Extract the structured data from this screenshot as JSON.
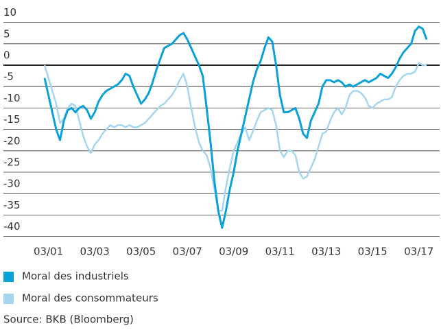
{
  "chart_data": {
    "type": "line",
    "x": [
      "01/01",
      "03/01",
      "05/01",
      "07/01",
      "09/01",
      "11/01",
      "01/02",
      "03/02",
      "05/02",
      "07/02",
      "09/02",
      "11/02",
      "01/03",
      "03/03",
      "05/03",
      "07/03",
      "09/03",
      "11/03",
      "01/04",
      "03/04",
      "05/04",
      "07/04",
      "09/04",
      "11/04",
      "01/05",
      "03/05",
      "05/05",
      "07/05",
      "09/05",
      "11/05",
      "01/06",
      "03/06",
      "05/06",
      "07/06",
      "09/06",
      "11/06",
      "01/07",
      "03/07",
      "05/07",
      "07/07",
      "09/07",
      "11/07",
      "01/08",
      "03/08",
      "05/08",
      "07/08",
      "09/08",
      "11/08",
      "01/09",
      "03/09",
      "05/09",
      "07/09",
      "09/09",
      "11/09",
      "01/10",
      "03/10",
      "05/10",
      "07/10",
      "09/10",
      "11/10",
      "01/11",
      "03/11",
      "05/11",
      "07/11",
      "09/11",
      "11/11",
      "01/12",
      "03/12",
      "05/12",
      "07/12",
      "09/12",
      "11/12",
      "01/13",
      "03/13",
      "05/13",
      "07/13",
      "09/13",
      "11/13",
      "01/14",
      "03/14",
      "05/14",
      "07/14",
      "09/14",
      "11/14",
      "01/15",
      "03/15",
      "05/15",
      "07/15",
      "09/15",
      "11/15",
      "01/16",
      "03/16",
      "05/16",
      "07/16",
      "09/16",
      "11/16",
      "01/17",
      "03/17",
      "05/17",
      "07/17"
    ],
    "series": [
      {
        "name": "Moral des industriels",
        "color": "#0aa0d8",
        "values": [
          -3,
          -7,
          -11,
          -15,
          -17.5,
          -13,
          -10.5,
          -10,
          -11,
          -10,
          -9.5,
          -10.5,
          -12.5,
          -11,
          -8.5,
          -7,
          -6,
          -5.5,
          -5,
          -4.5,
          -3.5,
          -2,
          -2.5,
          -5,
          -7,
          -9,
          -8,
          -6.5,
          -4,
          -1,
          1.5,
          4,
          4.5,
          5,
          6,
          7,
          7.5,
          6,
          4,
          2,
          0,
          -2.5,
          -10,
          -18,
          -27,
          -34,
          -38,
          -34,
          -29,
          -25,
          -20,
          -16,
          -12,
          -8,
          -4,
          -1,
          1,
          4,
          6.5,
          5.5,
          0,
          -7,
          -11,
          -11,
          -10.5,
          -10,
          -12.5,
          -16,
          -17,
          -13,
          -11,
          -9,
          -5,
          -3.5,
          -3.5,
          -4,
          -3.5,
          -4,
          -5,
          -4.5,
          -5,
          -4.5,
          -4,
          -3.5,
          -4,
          -3.5,
          -3,
          -2,
          -2.5,
          -3,
          -2,
          -0.5,
          1.5,
          3,
          4,
          5,
          8,
          9,
          8.5,
          6
        ]
      },
      {
        "name": "Moral des consommateurs",
        "color": "#a5d5ef",
        "values": [
          0,
          -3,
          -6,
          -9,
          -13.5,
          -12.5,
          -10,
          -9,
          -9.5,
          -13,
          -16.5,
          -19,
          -20.5,
          -18.5,
          -17.5,
          -16,
          -15,
          -14,
          -14.5,
          -14,
          -14,
          -14.5,
          -14,
          -14.5,
          -14.5,
          -14,
          -13.5,
          -12.5,
          -11.5,
          -10.5,
          -9.5,
          -9,
          -8,
          -7,
          -5.5,
          -3.5,
          -2,
          -5,
          -10,
          -14.5,
          -18,
          -20,
          -21,
          -24,
          -29,
          -34,
          -34,
          -28.5,
          -24,
          -20,
          -18,
          -16,
          -14.5,
          -17.5,
          -15.5,
          -13,
          -11,
          -10.5,
          -10,
          -10.5,
          -14,
          -20,
          -21.5,
          -20,
          -20,
          -21,
          -25,
          -26.5,
          -26,
          -24,
          -22,
          -19,
          -16,
          -15.5,
          -13,
          -11,
          -10,
          -11.5,
          -10,
          -7,
          -6,
          -6,
          -6.5,
          -7.5,
          -9.5,
          -10,
          -9,
          -8.5,
          -8,
          -8,
          -7.5,
          -5,
          -3.5,
          -2.5,
          -2,
          -2,
          -1.5,
          0.5,
          0,
          0
        ]
      }
    ],
    "xticks": [
      "03/01",
      "03/03",
      "03/05",
      "03/07",
      "03/09",
      "03/11",
      "03/13",
      "03/15",
      "03/17"
    ],
    "ylim": [
      -40,
      10
    ],
    "yticks": [
      10,
      5,
      0,
      -5,
      -10,
      -15,
      -20,
      -25,
      -30,
      -35,
      -40
    ],
    "grid": true,
    "source": "Source: BKB (Bloomberg)"
  }
}
